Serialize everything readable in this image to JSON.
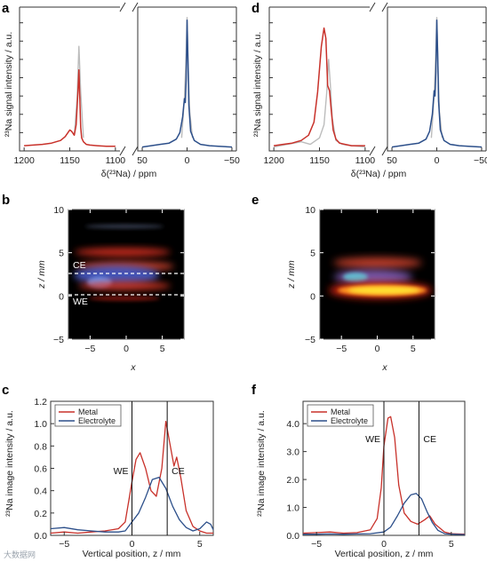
{
  "panels": {
    "a": {
      "label": "a"
    },
    "b": {
      "label": "b"
    },
    "c": {
      "label": "c"
    },
    "d": {
      "label": "d"
    },
    "e": {
      "label": "e"
    },
    "f": {
      "label": "f"
    }
  },
  "watermark": "大数据网",
  "colors": {
    "metal": "#c8312a",
    "electrolyte": "#2c4f8a",
    "reference": "#bcbcbc"
  },
  "chart_data": [
    {
      "id": "a",
      "type": "line",
      "ylabel": "²³Na signal intensity / a.u.",
      "xlabel": "δ(²³Na) / ppm",
      "left_range": [
        1205,
        1095
      ],
      "right_range": [
        55,
        -55
      ],
      "left_ticks": [
        "1200",
        "1150",
        "1100"
      ],
      "right_ticks": [
        "50",
        "0",
        "−50"
      ],
      "series": [
        {
          "color": "metal",
          "x": [
            1200,
            1190,
            1180,
            1170,
            1160,
            1155,
            1150,
            1148,
            1145,
            1143,
            1141,
            1140,
            1139,
            1138,
            1137,
            1135,
            1132,
            1128,
            1120,
            1110,
            1100
          ],
          "y": [
            0.04,
            0.045,
            0.05,
            0.06,
            0.08,
            0.11,
            0.16,
            0.15,
            0.12,
            0.2,
            0.45,
            0.62,
            0.4,
            0.18,
            0.1,
            0.07,
            0.05,
            0.045,
            0.04,
            0.035,
            0.035
          ]
        },
        {
          "color": "reference",
          "x": [
            1145,
            1142,
            1140,
            1138,
            1135
          ],
          "y": [
            0.12,
            0.4,
            0.8,
            0.45,
            0.1
          ]
        },
        {
          "color": "electrolyte",
          "x": [
            50,
            40,
            30,
            20,
            12,
            8,
            5,
            3,
            2,
            1,
            0,
            -1,
            -2,
            -4,
            -8,
            -15,
            -25,
            -35,
            -50
          ],
          "y": [
            0.03,
            0.04,
            0.05,
            0.06,
            0.09,
            0.14,
            0.26,
            0.4,
            0.37,
            0.55,
            1.0,
            0.7,
            0.35,
            0.15,
            0.08,
            0.05,
            0.04,
            0.035,
            0.03
          ]
        },
        {
          "color": "reference",
          "x": [
            6,
            3,
            1,
            0,
            -1,
            -3,
            -6
          ],
          "y": [
            0.1,
            0.4,
            0.75,
            1.02,
            0.7,
            0.3,
            0.1
          ]
        }
      ]
    },
    {
      "id": "d",
      "type": "line",
      "ylabel": "²³Na signal intensity / a.u.",
      "xlabel": "δ(²³Na) / ppm",
      "left_range": [
        1205,
        1095
      ],
      "right_range": [
        55,
        -55
      ],
      "left_ticks": [
        "1200",
        "1150",
        "1100"
      ],
      "right_ticks": [
        "50",
        "0",
        "−50"
      ],
      "series": [
        {
          "color": "metal",
          "x": [
            1200,
            1190,
            1180,
            1170,
            1162,
            1156,
            1152,
            1148,
            1145,
            1143,
            1141,
            1139,
            1137,
            1135,
            1132,
            1128,
            1122,
            1115,
            1100
          ],
          "y": [
            0.04,
            0.05,
            0.06,
            0.08,
            0.12,
            0.22,
            0.45,
            0.8,
            0.94,
            0.86,
            0.5,
            0.46,
            0.3,
            0.16,
            0.09,
            0.06,
            0.05,
            0.04,
            0.04
          ]
        },
        {
          "color": "reference",
          "x": [
            1200,
            1185,
            1170,
            1160,
            1150,
            1145,
            1142,
            1140,
            1138,
            1136,
            1132,
            1125,
            1115,
            1100
          ],
          "y": [
            0.03,
            0.05,
            0.07,
            0.05,
            0.1,
            0.2,
            0.45,
            0.7,
            0.5,
            0.25,
            0.08,
            0.05,
            0.04,
            0.03
          ]
        },
        {
          "color": "electrolyte",
          "x": [
            50,
            40,
            30,
            20,
            12,
            8,
            5,
            3,
            2,
            1,
            0,
            -1,
            -2,
            -4,
            -8,
            -15,
            -25,
            -35,
            -50
          ],
          "y": [
            0.03,
            0.04,
            0.05,
            0.06,
            0.09,
            0.15,
            0.28,
            0.46,
            0.42,
            0.6,
            1.0,
            0.75,
            0.38,
            0.16,
            0.08,
            0.05,
            0.04,
            0.035,
            0.03
          ]
        },
        {
          "color": "reference",
          "x": [
            6,
            3,
            1,
            0,
            -1,
            -3,
            -6
          ],
          "y": [
            0.1,
            0.42,
            0.78,
            1.02,
            0.72,
            0.3,
            0.1
          ]
        }
      ]
    },
    {
      "id": "b",
      "type": "heatmap",
      "ylabel": "z / mm",
      "xlabel": "x",
      "xlim": [
        -8,
        8
      ],
      "ylim": [
        -5,
        10
      ],
      "x_ticks": [
        -5,
        0,
        5
      ],
      "y_ticks": [
        -5,
        0,
        5,
        10
      ],
      "annotations": [
        {
          "text": "CE",
          "z": 2.6
        },
        {
          "text": "WE",
          "z": 0
        }
      ]
    },
    {
      "id": "e",
      "type": "heatmap",
      "ylabel": "z / mm",
      "xlabel": "x",
      "xlim": [
        -8,
        8
      ],
      "ylim": [
        -5,
        10
      ],
      "x_ticks": [
        -5,
        0,
        5
      ],
      "y_ticks": [
        -5,
        0,
        5,
        10
      ]
    },
    {
      "id": "c",
      "type": "line",
      "ylabel": "²³Na image intensity / a.u.",
      "xlabel": "Vertical position, z / mm",
      "xlim": [
        -6,
        6
      ],
      "ylim": [
        0,
        1.2
      ],
      "x_ticks": [
        -5,
        0,
        5
      ],
      "y_ticks": [
        0.0,
        0.2,
        0.4,
        0.6,
        0.8,
        1.0,
        1.2
      ],
      "y_tick_labels": [
        "0.0",
        "0.2",
        "0.4",
        "0.6",
        "0.8",
        "1.0",
        "1.2"
      ],
      "legend": "top-left",
      "vlines": [
        {
          "x": 0,
          "text": "WE"
        },
        {
          "x": 2.6,
          "text": "CE"
        }
      ],
      "series": [
        {
          "name": "Metal",
          "color": "metal",
          "x": [
            -6,
            -5,
            -4,
            -3,
            -2,
            -1,
            -0.5,
            0,
            0.3,
            0.6,
            1,
            1.4,
            1.8,
            2.2,
            2.5,
            2.8,
            3.1,
            3.3,
            3.6,
            4,
            4.5,
            5,
            5.5,
            6
          ],
          "y": [
            0.02,
            0.03,
            0.02,
            0.03,
            0.04,
            0.06,
            0.12,
            0.48,
            0.68,
            0.74,
            0.6,
            0.4,
            0.35,
            0.6,
            1.02,
            0.82,
            0.62,
            0.7,
            0.52,
            0.22,
            0.08,
            0.04,
            0.02,
            0.02
          ]
        },
        {
          "name": "Electrolyte",
          "color": "electrolyte",
          "x": [
            -6,
            -5,
            -4,
            -3,
            -2,
            -1,
            -0.5,
            0,
            0.5,
            1,
            1.5,
            2,
            2.5,
            3,
            3.5,
            4,
            4.5,
            5,
            5.5,
            5.8,
            6
          ],
          "y": [
            0.06,
            0.07,
            0.05,
            0.04,
            0.03,
            0.03,
            0.04,
            0.12,
            0.2,
            0.34,
            0.5,
            0.52,
            0.42,
            0.26,
            0.14,
            0.07,
            0.04,
            0.06,
            0.12,
            0.1,
            0.05
          ]
        }
      ]
    },
    {
      "id": "f",
      "type": "line",
      "ylabel": "²³Na image intensity / a.u.",
      "xlabel": "Vertical position, z / mm",
      "xlim": [
        -6,
        6
      ],
      "ylim": [
        0,
        4.8
      ],
      "x_ticks": [
        -5,
        0,
        5
      ],
      "y_ticks": [
        0.0,
        1.0,
        2.0,
        3.0,
        4.0
      ],
      "y_tick_labels": [
        "0.0",
        "1.0",
        "2.0",
        "3.0",
        "4.0"
      ],
      "legend": "top-left",
      "vlines": [
        {
          "x": 0,
          "text": "WE"
        },
        {
          "x": 2.6,
          "text": "CE"
        }
      ],
      "series": [
        {
          "name": "Metal",
          "color": "metal",
          "x": [
            -6,
            -5,
            -4,
            -3,
            -2,
            -1,
            -0.5,
            -0.2,
            0,
            0.3,
            0.5,
            0.8,
            1.1,
            1.5,
            2,
            2.5,
            3,
            3.4,
            3.8,
            4.5,
            5,
            6
          ],
          "y": [
            0.08,
            0.1,
            0.12,
            0.08,
            0.1,
            0.2,
            0.6,
            1.7,
            3.2,
            4.2,
            4.25,
            3.5,
            1.8,
            0.8,
            0.5,
            0.4,
            0.55,
            0.7,
            0.4,
            0.12,
            0.06,
            0.04
          ]
        },
        {
          "name": "Electrolyte",
          "color": "electrolyte",
          "x": [
            -6,
            -5,
            -4,
            -3,
            -2,
            -1,
            0,
            0.5,
            1,
            1.5,
            2,
            2.4,
            2.8,
            3.2,
            3.6,
            4,
            4.5,
            5,
            6
          ],
          "y": [
            0.04,
            0.04,
            0.05,
            0.04,
            0.05,
            0.06,
            0.12,
            0.3,
            0.7,
            1.15,
            1.45,
            1.5,
            1.3,
            0.85,
            0.45,
            0.18,
            0.06,
            0.04,
            0.03
          ]
        }
      ]
    }
  ]
}
